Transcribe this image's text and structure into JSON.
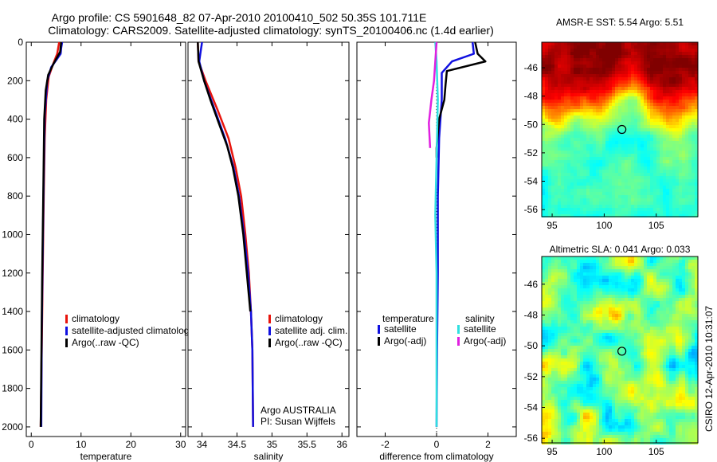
{
  "header": {
    "line1": "Argo profile: CS 5901648_82 07-Apr-2010 20100410_502 50.35S 101.711E",
    "line2": "Climatology: CARS2009. Satellite-adjusted climatology: synTS_20100406.nc (1.4d earlier)"
  },
  "footer_side": "CSIRO 12-Apr-2010 10:31:07",
  "colors": {
    "red": "#e8140c",
    "blue": "#1010e0",
    "black": "#000000",
    "cyan": "#30e0e0",
    "magenta": "#e020e0"
  },
  "chart_data": [
    {
      "id": "temperature",
      "type": "line",
      "xlabel": "temperature",
      "ylabel": "",
      "xlim": [
        -1,
        31
      ],
      "ylim": [
        2050,
        0
      ],
      "xticks": [
        0,
        10,
        20,
        30
      ],
      "yticks": [
        0,
        200,
        400,
        600,
        800,
        1000,
        1200,
        1400,
        1600,
        1800,
        2000
      ],
      "legend": [
        "climatology",
        "satellite-adjusted climatolog",
        "Argo(..raw -QC)"
      ],
      "series": [
        {
          "color": "red",
          "points": [
            [
              5.6,
              0
            ],
            [
              5.2,
              60
            ],
            [
              4.3,
              120
            ],
            [
              3.5,
              180
            ],
            [
              3.0,
              300
            ],
            [
              2.7,
              500
            ],
            [
              2.5,
              800
            ],
            [
              2.3,
              1200
            ],
            [
              2.1,
              1600
            ],
            [
              1.9,
              2000
            ]
          ]
        },
        {
          "color": "blue",
          "points": [
            [
              6.2,
              0
            ],
            [
              6.0,
              30
            ],
            [
              5.9,
              60
            ],
            [
              4.0,
              130
            ],
            [
              3.2,
              200
            ],
            [
              2.7,
              380
            ],
            [
              2.5,
              700
            ],
            [
              2.3,
              1100
            ],
            [
              2.1,
              1500
            ],
            [
              2.0,
              2000
            ]
          ]
        },
        {
          "color": "black",
          "points": [
            [
              6.0,
              0
            ],
            [
              5.8,
              50
            ],
            [
              4.5,
              110
            ],
            [
              3.4,
              170
            ],
            [
              2.9,
              250
            ],
            [
              2.6,
              400
            ],
            [
              2.4,
              800
            ],
            [
              2.2,
              1200
            ],
            [
              2.0,
              1700
            ],
            [
              1.9,
              2000
            ]
          ]
        }
      ]
    },
    {
      "id": "salinity",
      "type": "line",
      "xlabel": "salinity",
      "ylabel": "",
      "xlim": [
        33.8,
        36.1
      ],
      "ylim": [
        2050,
        0
      ],
      "xticks": [
        34,
        34.5,
        35,
        35.5,
        36
      ],
      "yticks": [
        0,
        200,
        400,
        600,
        800,
        1000,
        1200,
        1400,
        1600,
        1800,
        2000
      ],
      "legend": [
        "climatology",
        "satellite adj. clim.",
        "Argo(..raw -QC)"
      ],
      "annotation": [
        "Argo AUSTRALIA",
        "PI: Susan Wijffels"
      ],
      "series": [
        {
          "color": "red",
          "points": [
            [
              33.94,
              0
            ],
            [
              33.95,
              100
            ],
            [
              34.05,
              200
            ],
            [
              34.22,
              350
            ],
            [
              34.38,
              500
            ],
            [
              34.48,
              650
            ],
            [
              34.56,
              800
            ],
            [
              34.62,
              1000
            ],
            [
              34.67,
              1200
            ],
            [
              34.7,
              1400
            ],
            [
              34.72,
              1600
            ],
            [
              34.73,
              2000
            ]
          ]
        },
        {
          "color": "blue",
          "points": [
            [
              34.0,
              0
            ],
            [
              33.98,
              50
            ],
            [
              33.96,
              100
            ],
            [
              34.03,
              200
            ],
            [
              34.18,
              350
            ],
            [
              34.33,
              500
            ],
            [
              34.45,
              650
            ],
            [
              34.53,
              800
            ],
            [
              34.6,
              1000
            ],
            [
              34.66,
              1200
            ],
            [
              34.7,
              1400
            ],
            [
              34.72,
              1600
            ],
            [
              34.73,
              2000
            ]
          ]
        },
        {
          "color": "black",
          "points": [
            [
              33.94,
              0
            ],
            [
              33.95,
              100
            ],
            [
              34.03,
              200
            ],
            [
              34.12,
              300
            ],
            [
              34.24,
              420
            ],
            [
              34.36,
              540
            ],
            [
              34.44,
              650
            ],
            [
              34.52,
              800
            ],
            [
              34.59,
              1000
            ],
            [
              34.64,
              1200
            ],
            [
              34.69,
              1400
            ]
          ]
        }
      ]
    },
    {
      "id": "difference",
      "type": "line",
      "xlabel": "difference from climatology",
      "ylabel": "",
      "xlim": [
        -3.1,
        3.1
      ],
      "ylim": [
        2050,
        0
      ],
      "xticks": [
        -2,
        0,
        2
      ],
      "yticks": [
        0,
        200,
        400,
        600,
        800,
        1000,
        1200,
        1400,
        1600,
        1800,
        2000
      ],
      "legend_titles": [
        "temperature",
        "salinity"
      ],
      "legend": [
        "satellite",
        "Argo(-adj)",
        "satellite",
        "Argo(-adj)"
      ],
      "series": [
        {
          "name": "temperature satellite",
          "color": "blue",
          "points": [
            [
              1.4,
              0
            ],
            [
              1.45,
              60
            ],
            [
              0.6,
              100
            ],
            [
              0.2,
              160
            ],
            [
              0.2,
              300
            ],
            [
              0.1,
              500
            ],
            [
              0.05,
              800
            ],
            [
              0.05,
              1200
            ],
            [
              0.02,
              1600
            ],
            [
              0.0,
              2000
            ]
          ]
        },
        {
          "name": "temperature Argo(-adj)",
          "color": "black",
          "points": [
            [
              1.5,
              0
            ],
            [
              1.6,
              60
            ],
            [
              1.9,
              100
            ],
            [
              0.4,
              150
            ],
            [
              0.35,
              220
            ],
            [
              0.3,
              300
            ],
            [
              0.1,
              400
            ],
            [
              0.0,
              550
            ],
            [
              0.0,
              600
            ]
          ]
        },
        {
          "name": "salinity satellite",
          "color": "cyan",
          "points": [
            [
              -0.05,
              0
            ],
            [
              0.0,
              100
            ],
            [
              0.05,
              300
            ],
            [
              0.0,
              600
            ],
            [
              -0.05,
              900
            ],
            [
              0.0,
              1200
            ],
            [
              0.0,
              2000
            ]
          ]
        },
        {
          "name": "salinity Argo(-adj)",
          "color": "magenta",
          "points": [
            [
              0.0,
              0
            ],
            [
              -0.1,
              200
            ],
            [
              -0.2,
              300
            ],
            [
              -0.3,
              420
            ],
            [
              -0.25,
              550
            ]
          ]
        }
      ]
    },
    {
      "id": "sst-map",
      "type": "heatmap",
      "title": "AMSR-E SST: 5.54 Argo: 5.51",
      "xlim": [
        94,
        109
      ],
      "ylim": [
        -56.5,
        -44.2
      ],
      "xticks": [
        95,
        100,
        105
      ],
      "yticks": [
        -46,
        -48,
        -50,
        -52,
        -54,
        -56
      ],
      "marker": [
        101.7,
        -50.35
      ]
    },
    {
      "id": "sla-map",
      "type": "heatmap",
      "title": "Altimetric SLA: 0.041 Argo: 0.033",
      "xlim": [
        94,
        109
      ],
      "ylim": [
        -56.3,
        -44.2
      ],
      "xticks": [
        95,
        100,
        105
      ],
      "yticks": [
        -46,
        -48,
        -50,
        -52,
        -54,
        -56
      ],
      "marker": [
        101.7,
        -50.35
      ]
    }
  ]
}
